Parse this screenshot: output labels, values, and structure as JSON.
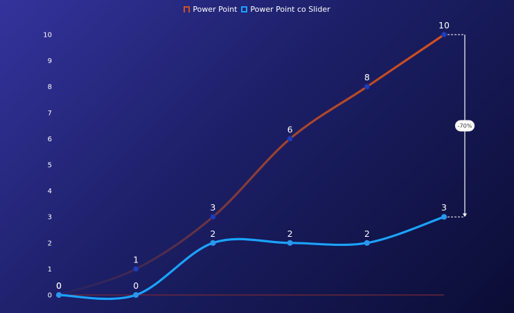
{
  "chart_data": {
    "type": "line",
    "categories": [
      "",
      "",
      "",
      "",
      "",
      ""
    ],
    "series": [
      {
        "name": "Power Point",
        "values": [
          0,
          1,
          3,
          6,
          8,
          10
        ],
        "color": "#d4511e"
      },
      {
        "name": "Power Point co Slider",
        "values": [
          0,
          0,
          2,
          2,
          2,
          3
        ],
        "color": "#1aa3ff"
      }
    ],
    "yticks": [
      0,
      1,
      2,
      3,
      4,
      5,
      6,
      7,
      8,
      9,
      10
    ],
    "ylim": [
      0,
      10
    ],
    "annotation": {
      "text": "-70%",
      "from_value": 10,
      "to_value": 3
    },
    "legend": "top-center",
    "grid": false
  }
}
